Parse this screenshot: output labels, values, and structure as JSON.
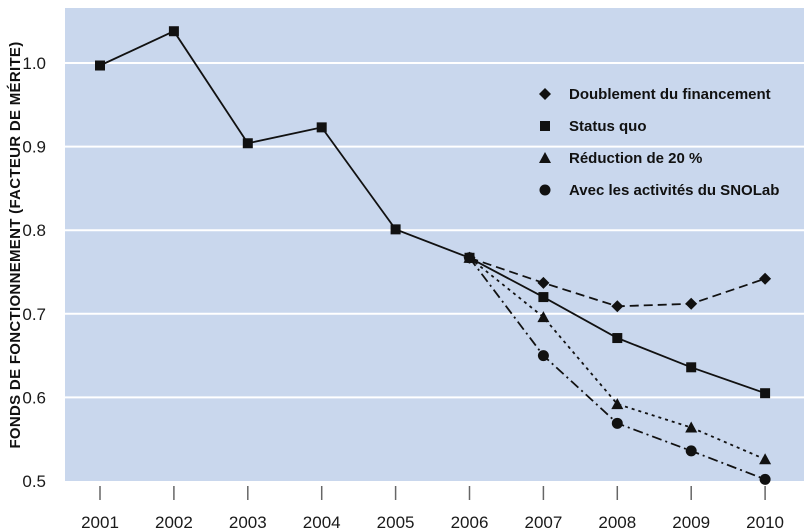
{
  "chart_data": {
    "type": "line",
    "title": "",
    "xlabel": "",
    "ylabel": "FONDS DE FONCTIONNEMENT (FACTEUR DE MÉRITE)",
    "x": [
      2001,
      2002,
      2003,
      2004,
      2005,
      2006,
      2007,
      2008,
      2009,
      2010
    ],
    "ylim": [
      0.5,
      1.05
    ],
    "yticks": [
      0.5,
      0.6,
      0.7,
      0.8,
      0.9,
      1.0
    ],
    "ytick_labels": [
      "0.5",
      "0.6",
      "0.7",
      "0.8",
      "0.9",
      "1.0"
    ],
    "xtick_labels": [
      "2001",
      "2002",
      "2003",
      "2004",
      "2005",
      "2006",
      "2007",
      "2008",
      "2009",
      "2010"
    ],
    "grid": "horizontal",
    "legend_position": "top-right",
    "colors": {
      "background": "#c9d7ed",
      "grid": "#ffffff",
      "line": "#111111"
    },
    "series": [
      {
        "name": "Doublement du financement",
        "marker": "diamond",
        "dash": "dashed",
        "points": [
          [
            2006,
            0.767
          ],
          [
            2007,
            0.737
          ],
          [
            2008,
            0.709
          ],
          [
            2009,
            0.712
          ],
          [
            2010,
            0.742
          ]
        ]
      },
      {
        "name": "Status quo",
        "marker": "square",
        "dash": "solid",
        "points": [
          [
            2001,
            0.997
          ],
          [
            2002,
            1.038
          ],
          [
            2003,
            0.904
          ],
          [
            2004,
            0.923
          ],
          [
            2005,
            0.801
          ],
          [
            2006,
            0.767
          ],
          [
            2007,
            0.72
          ],
          [
            2008,
            0.671
          ],
          [
            2009,
            0.636
          ],
          [
            2010,
            0.605
          ]
        ]
      },
      {
        "name": "Réduction de 20 %",
        "marker": "triangle",
        "dash": "dotted",
        "points": [
          [
            2006,
            0.767
          ],
          [
            2007,
            0.696
          ],
          [
            2008,
            0.592
          ],
          [
            2009,
            0.564
          ],
          [
            2010,
            0.526
          ]
        ]
      },
      {
        "name": "Avec les activités du SNOLab",
        "marker": "circle",
        "dash": "dashdot",
        "points": [
          [
            2006,
            0.767
          ],
          [
            2007,
            0.65
          ],
          [
            2008,
            0.569
          ],
          [
            2009,
            0.536
          ],
          [
            2010,
            0.502
          ]
        ]
      }
    ]
  }
}
